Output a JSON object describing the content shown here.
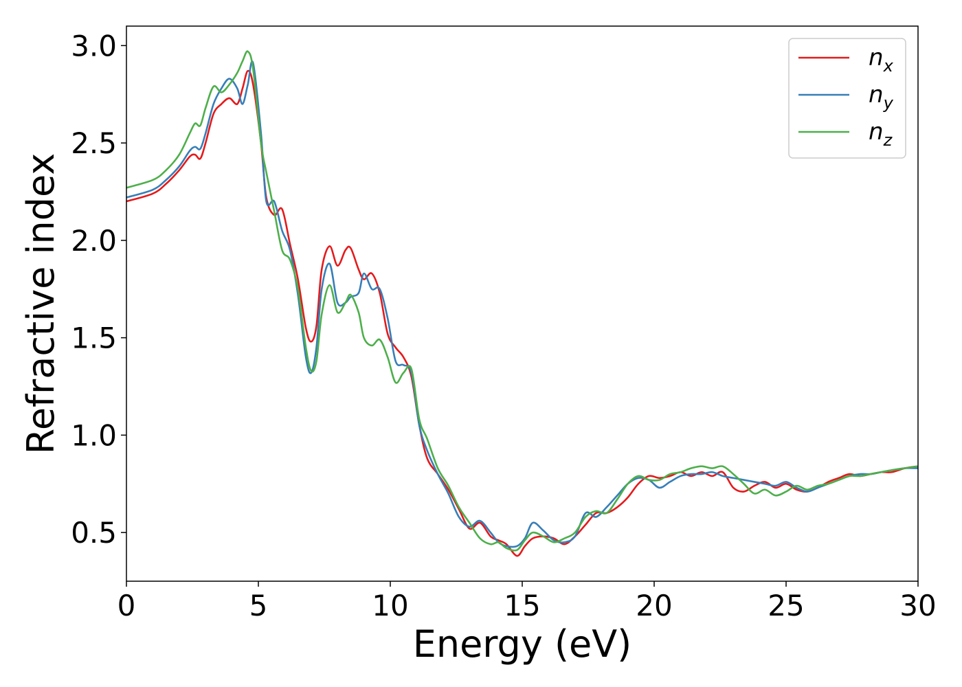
{
  "chart_data": {
    "type": "line",
    "xlabel": "Energy (eV)",
    "ylabel": "Refractive index",
    "xlim": [
      0,
      30
    ],
    "ylim": [
      0.25,
      3.1
    ],
    "xticks": [
      0,
      5,
      10,
      15,
      20,
      25,
      30
    ],
    "xtick_labels": [
      "0",
      "5",
      "10",
      "15",
      "20",
      "25",
      "30"
    ],
    "yticks": [
      0.5,
      1.0,
      1.5,
      2.0,
      2.5,
      3.0
    ],
    "ytick_labels": [
      "0.5",
      "1.0",
      "1.5",
      "2.0",
      "2.5",
      "3.0"
    ],
    "grid": false,
    "legend_position": "top-right",
    "series": [
      {
        "name": "n",
        "subscript": "x",
        "color": "#e41a1c",
        "x": [
          0,
          1,
          1.5,
          2,
          2.4,
          2.6,
          2.8,
          3.0,
          3.3,
          3.6,
          3.9,
          4.2,
          4.4,
          4.6,
          4.8,
          5.1,
          5.3,
          5.6,
          5.9,
          6.2,
          6.5,
          6.8,
          7.0,
          7.2,
          7.4,
          7.7,
          8.0,
          8.3,
          8.5,
          8.8,
          9.0,
          9.3,
          9.6,
          9.9,
          10.2,
          10.5,
          10.8,
          11.1,
          11.4,
          11.8,
          12.2,
          12.6,
          13.0,
          13.4,
          13.8,
          14.1,
          14.4,
          14.8,
          15.1,
          15.4,
          15.8,
          16.2,
          16.6,
          17.0,
          17.4,
          17.8,
          18.2,
          18.6,
          19.0,
          19.4,
          19.8,
          20.2,
          20.6,
          21.0,
          21.4,
          21.8,
          22.2,
          22.6,
          23.0,
          23.4,
          23.8,
          24.2,
          24.6,
          25.0,
          25.4,
          25.8,
          26.2,
          26.6,
          27.0,
          27.4,
          27.8,
          28.2,
          28.6,
          29.0,
          29.5,
          30.0
        ],
        "y": [
          2.2,
          2.24,
          2.29,
          2.36,
          2.43,
          2.44,
          2.42,
          2.5,
          2.65,
          2.7,
          2.73,
          2.7,
          2.78,
          2.87,
          2.8,
          2.5,
          2.22,
          2.13,
          2.16,
          1.98,
          1.8,
          1.55,
          1.48,
          1.56,
          1.85,
          1.97,
          1.87,
          1.95,
          1.96,
          1.85,
          1.8,
          1.83,
          1.73,
          1.52,
          1.45,
          1.4,
          1.3,
          1.05,
          0.88,
          0.8,
          0.72,
          0.62,
          0.52,
          0.55,
          0.48,
          0.46,
          0.44,
          0.38,
          0.43,
          0.47,
          0.48,
          0.47,
          0.44,
          0.48,
          0.54,
          0.6,
          0.6,
          0.63,
          0.68,
          0.75,
          0.79,
          0.78,
          0.79,
          0.81,
          0.79,
          0.81,
          0.79,
          0.81,
          0.73,
          0.71,
          0.74,
          0.76,
          0.73,
          0.75,
          0.72,
          0.71,
          0.73,
          0.76,
          0.78,
          0.8,
          0.79,
          0.8,
          0.81,
          0.81,
          0.83,
          0.84
        ]
      },
      {
        "name": "n",
        "subscript": "y",
        "color": "#377eb8",
        "x": [
          0,
          1,
          1.5,
          2,
          2.4,
          2.6,
          2.8,
          3.0,
          3.3,
          3.6,
          3.9,
          4.2,
          4.4,
          4.6,
          4.8,
          5.1,
          5.3,
          5.6,
          5.9,
          6.2,
          6.5,
          6.8,
          7.0,
          7.2,
          7.4,
          7.7,
          8.0,
          8.3,
          8.5,
          8.8,
          9.0,
          9.3,
          9.6,
          9.9,
          10.2,
          10.5,
          10.8,
          11.1,
          11.4,
          11.8,
          12.2,
          12.6,
          13.0,
          13.4,
          13.8,
          14.1,
          14.4,
          14.8,
          15.1,
          15.4,
          15.8,
          16.2,
          16.6,
          17.0,
          17.4,
          17.8,
          18.2,
          18.6,
          19.0,
          19.4,
          19.8,
          20.2,
          20.6,
          21.0,
          21.4,
          21.8,
          22.2,
          22.6,
          23.0,
          23.4,
          23.8,
          24.2,
          24.6,
          25.0,
          25.4,
          25.8,
          26.2,
          26.6,
          27.0,
          27.4,
          27.8,
          28.2,
          28.6,
          29.0,
          29.5,
          30.0
        ],
        "y": [
          2.22,
          2.26,
          2.31,
          2.38,
          2.46,
          2.48,
          2.47,
          2.55,
          2.7,
          2.78,
          2.83,
          2.78,
          2.7,
          2.8,
          2.91,
          2.55,
          2.2,
          2.2,
          2.05,
          1.95,
          1.72,
          1.4,
          1.32,
          1.45,
          1.75,
          1.88,
          1.68,
          1.68,
          1.71,
          1.73,
          1.83,
          1.75,
          1.75,
          1.6,
          1.38,
          1.36,
          1.32,
          1.05,
          0.92,
          0.8,
          0.7,
          0.58,
          0.53,
          0.56,
          0.5,
          0.45,
          0.43,
          0.43,
          0.47,
          0.55,
          0.51,
          0.46,
          0.45,
          0.48,
          0.6,
          0.58,
          0.63,
          0.69,
          0.75,
          0.78,
          0.77,
          0.73,
          0.76,
          0.79,
          0.8,
          0.8,
          0.81,
          0.79,
          0.78,
          0.77,
          0.76,
          0.75,
          0.74,
          0.76,
          0.73,
          0.71,
          0.73,
          0.75,
          0.77,
          0.79,
          0.8,
          0.8,
          0.81,
          0.82,
          0.83,
          0.83
        ]
      },
      {
        "name": "n",
        "subscript": "z",
        "color": "#4daf4a",
        "x": [
          0,
          1,
          1.5,
          2,
          2.4,
          2.6,
          2.8,
          3.0,
          3.3,
          3.6,
          3.9,
          4.2,
          4.4,
          4.6,
          4.8,
          5.1,
          5.3,
          5.6,
          5.9,
          6.2,
          6.5,
          6.8,
          7.0,
          7.2,
          7.4,
          7.7,
          8.0,
          8.3,
          8.5,
          8.8,
          9.0,
          9.3,
          9.6,
          9.9,
          10.2,
          10.5,
          10.8,
          11.1,
          11.4,
          11.8,
          12.2,
          12.6,
          13.0,
          13.4,
          13.8,
          14.1,
          14.4,
          14.8,
          15.1,
          15.4,
          15.8,
          16.2,
          16.6,
          17.0,
          17.4,
          17.8,
          18.2,
          18.6,
          19.0,
          19.4,
          19.8,
          20.2,
          20.6,
          21.0,
          21.4,
          21.8,
          22.2,
          22.6,
          23.0,
          23.4,
          23.8,
          24.2,
          24.6,
          25.0,
          25.4,
          25.8,
          26.2,
          26.6,
          27.0,
          27.4,
          27.8,
          28.2,
          28.6,
          29.0,
          29.5,
          30.0
        ],
        "y": [
          2.27,
          2.31,
          2.36,
          2.44,
          2.55,
          2.6,
          2.59,
          2.68,
          2.79,
          2.76,
          2.8,
          2.86,
          2.92,
          2.97,
          2.88,
          2.5,
          2.35,
          2.15,
          1.95,
          1.9,
          1.75,
          1.45,
          1.33,
          1.38,
          1.62,
          1.77,
          1.63,
          1.68,
          1.72,
          1.63,
          1.5,
          1.46,
          1.49,
          1.4,
          1.27,
          1.32,
          1.34,
          1.08,
          0.98,
          0.83,
          0.74,
          0.63,
          0.55,
          0.47,
          0.44,
          0.45,
          0.42,
          0.41,
          0.46,
          0.5,
          0.48,
          0.45,
          0.47,
          0.5,
          0.58,
          0.61,
          0.6,
          0.67,
          0.75,
          0.79,
          0.77,
          0.77,
          0.8,
          0.81,
          0.83,
          0.84,
          0.83,
          0.84,
          0.8,
          0.75,
          0.7,
          0.72,
          0.69,
          0.71,
          0.74,
          0.72,
          0.74,
          0.75,
          0.77,
          0.79,
          0.79,
          0.8,
          0.81,
          0.82,
          0.83,
          0.84
        ]
      }
    ]
  }
}
